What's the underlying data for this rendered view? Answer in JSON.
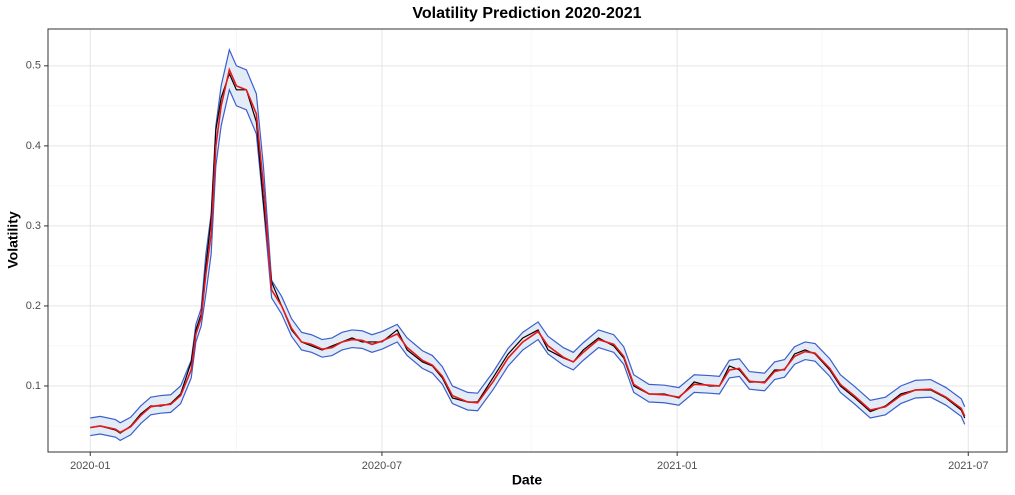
{
  "chart_data": {
    "type": "line",
    "title": "Volatility Prediction 2020-2021",
    "x_label": "Date",
    "y_label": "Volatility",
    "x": [
      2020.0,
      2020.017,
      2020.043,
      2020.051,
      2020.069,
      2020.086,
      2020.103,
      2020.12,
      2020.137,
      2020.154,
      2020.172,
      2020.18,
      2020.189,
      2020.197,
      2020.206,
      2020.214,
      2020.223,
      2020.237,
      2020.249,
      2020.266,
      2020.283,
      2020.295,
      2020.309,
      2020.326,
      2020.343,
      2020.36,
      2020.377,
      2020.395,
      2020.412,
      2020.429,
      2020.446,
      2020.463,
      2020.48,
      2020.497,
      2020.523,
      2020.54,
      2020.566,
      2020.583,
      2020.6,
      2020.617,
      2020.643,
      2020.66,
      2020.686,
      2020.712,
      2020.737,
      2020.763,
      2020.78,
      2020.806,
      2020.823,
      2020.84,
      2020.866,
      2020.892,
      2020.909,
      2020.926,
      2020.952,
      2020.978,
      2021.003,
      2021.029,
      2021.055,
      2021.072,
      2021.089,
      2021.106,
      2021.123,
      2021.149,
      2021.166,
      2021.183,
      2021.2,
      2021.218,
      2021.235,
      2021.26,
      2021.278,
      2021.303,
      2021.329,
      2021.355,
      2021.381,
      2021.406,
      2021.432,
      2021.458,
      2021.484,
      2021.49
    ],
    "series": [
      {
        "color": "#000000",
        "values": [
          0.048,
          0.05,
          0.045,
          0.041,
          0.05,
          0.065,
          0.075,
          0.075,
          0.078,
          0.09,
          0.13,
          0.17,
          0.19,
          0.25,
          0.31,
          0.42,
          0.46,
          0.49,
          0.47,
          0.47,
          0.43,
          0.33,
          0.23,
          0.2,
          0.17,
          0.155,
          0.15,
          0.145,
          0.15,
          0.155,
          0.16,
          0.155,
          0.155,
          0.155,
          0.17,
          0.145,
          0.13,
          0.125,
          0.11,
          0.085,
          0.08,
          0.08,
          0.11,
          0.14,
          0.16,
          0.17,
          0.145,
          0.135,
          0.13,
          0.145,
          0.16,
          0.15,
          0.135,
          0.1,
          0.09,
          0.09,
          0.085,
          0.105,
          0.1,
          0.1,
          0.125,
          0.12,
          0.105,
          0.105,
          0.12,
          0.12,
          0.14,
          0.145,
          0.14,
          0.12,
          0.1,
          0.085,
          0.068,
          0.075,
          0.09,
          0.095,
          0.095,
          0.085,
          0.07,
          0.06
        ]
      },
      {
        "color": "#e41a1c",
        "values": [
          0.048,
          0.05,
          0.046,
          0.042,
          0.049,
          0.063,
          0.074,
          0.076,
          0.077,
          0.088,
          0.12,
          0.165,
          0.185,
          0.24,
          0.29,
          0.4,
          0.45,
          0.495,
          0.475,
          0.47,
          0.44,
          0.35,
          0.22,
          0.2,
          0.172,
          0.155,
          0.152,
          0.146,
          0.148,
          0.155,
          0.158,
          0.157,
          0.152,
          0.156,
          0.165,
          0.148,
          0.132,
          0.126,
          0.112,
          0.088,
          0.08,
          0.079,
          0.105,
          0.135,
          0.155,
          0.168,
          0.15,
          0.136,
          0.13,
          0.142,
          0.158,
          0.152,
          0.137,
          0.102,
          0.09,
          0.089,
          0.086,
          0.102,
          0.101,
          0.1,
          0.12,
          0.122,
          0.106,
          0.104,
          0.118,
          0.121,
          0.137,
          0.143,
          0.141,
          0.122,
          0.102,
          0.087,
          0.07,
          0.074,
          0.088,
          0.095,
          0.096,
          0.086,
          0.072,
          0.062
        ]
      },
      {
        "color": "#3a5fcd",
        "values": [
          0.06,
          0.062,
          0.058,
          0.054,
          0.061,
          0.075,
          0.086,
          0.088,
          0.089,
          0.1,
          0.132,
          0.177,
          0.197,
          0.265,
          0.315,
          0.425,
          0.475,
          0.52,
          0.5,
          0.495,
          0.465,
          0.375,
          0.232,
          0.212,
          0.184,
          0.167,
          0.164,
          0.158,
          0.16,
          0.167,
          0.17,
          0.169,
          0.164,
          0.168,
          0.177,
          0.16,
          0.144,
          0.138,
          0.124,
          0.1,
          0.092,
          0.091,
          0.117,
          0.147,
          0.167,
          0.18,
          0.162,
          0.148,
          0.142,
          0.154,
          0.17,
          0.164,
          0.149,
          0.114,
          0.102,
          0.101,
          0.098,
          0.114,
          0.113,
          0.112,
          0.132,
          0.134,
          0.118,
          0.116,
          0.13,
          0.133,
          0.149,
          0.155,
          0.153,
          0.134,
          0.114,
          0.099,
          0.082,
          0.086,
          0.1,
          0.107,
          0.108,
          0.098,
          0.084,
          0.074
        ]
      },
      {
        "color": "#3a5fcd",
        "values": [
          0.038,
          0.04,
          0.036,
          0.032,
          0.039,
          0.053,
          0.064,
          0.066,
          0.067,
          0.078,
          0.11,
          0.155,
          0.175,
          0.215,
          0.265,
          0.375,
          0.425,
          0.47,
          0.45,
          0.445,
          0.415,
          0.325,
          0.21,
          0.19,
          0.162,
          0.145,
          0.142,
          0.136,
          0.138,
          0.145,
          0.148,
          0.147,
          0.142,
          0.146,
          0.155,
          0.138,
          0.122,
          0.116,
          0.102,
          0.078,
          0.07,
          0.069,
          0.095,
          0.125,
          0.145,
          0.158,
          0.14,
          0.126,
          0.12,
          0.132,
          0.148,
          0.142,
          0.127,
          0.092,
          0.08,
          0.079,
          0.076,
          0.092,
          0.091,
          0.09,
          0.11,
          0.112,
          0.096,
          0.094,
          0.108,
          0.111,
          0.127,
          0.133,
          0.131,
          0.112,
          0.092,
          0.077,
          0.06,
          0.064,
          0.078,
          0.085,
          0.086,
          0.076,
          0.062,
          0.052
        ]
      }
    ],
    "band_fill": "#e3ebf7",
    "xlim": [
      2019.928,
      2021.562
    ],
    "ylim": [
      0.0175,
      0.546
    ],
    "xticks": [
      {
        "value": 2020.0,
        "label": "2020-01"
      },
      {
        "value": 2020.497,
        "label": "2020-07"
      },
      {
        "value": 2021.0,
        "label": "2021-01"
      },
      {
        "value": 2021.496,
        "label": "2021-07"
      }
    ],
    "yticks": [
      0.1,
      0.2,
      0.3,
      0.4,
      0.5
    ],
    "xticks_minor": [
      2020.249,
      2020.751,
      2021.247
    ],
    "yticks_minor": [
      0.05,
      0.15,
      0.25,
      0.35,
      0.45
    ],
    "grid": true
  }
}
